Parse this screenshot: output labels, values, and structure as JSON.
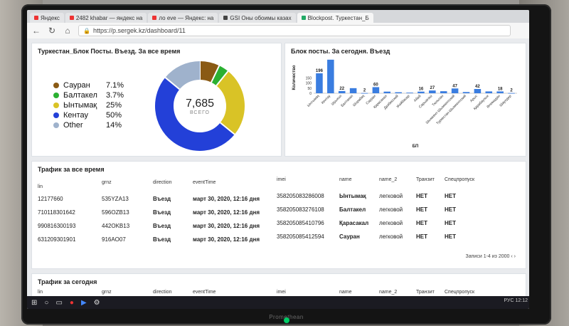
{
  "browser": {
    "tabs": [
      {
        "label": "Яндекс"
      },
      {
        "label": "2482 khabar — яндекс на"
      },
      {
        "label": "ло eve — Яндекс: на"
      },
      {
        "label": "GSI Оны обоимы казах"
      },
      {
        "label": "Blockpost. Туркестан_Б"
      }
    ],
    "url": "https://p.sergek.kz/dashboard/11"
  },
  "donut_panel": {
    "title": "Туркестан_Блок Посты. Въезд. За все время",
    "total": "7,685",
    "total_label": "ВСЕГО",
    "legend": [
      {
        "name": "Сауран",
        "pct": "7.1%",
        "color": "#8a5a14",
        "value": 7.1
      },
      {
        "name": "Балтакел",
        "pct": "3.7%",
        "color": "#2bb031",
        "value": 3.7
      },
      {
        "name": "Ынтымақ",
        "pct": "25%",
        "color": "#d9c326",
        "value": 25
      },
      {
        "name": "Кентау",
        "pct": "50%",
        "color": "#2340d8",
        "value": 50
      },
      {
        "name": "Other",
        "pct": "14%",
        "color": "#9fb2cc",
        "value": 14
      }
    ]
  },
  "chart_data": {
    "type": "bar",
    "title": "Блок посты. За сегодня. Въезд",
    "ylabel": "Количество",
    "xlabel": "БП",
    "categories": [
      "Ынтымақ",
      "Кентау",
      "Шуыкол",
      "Балтакел",
      "Шорабақ",
      "Сауран",
      "Қарасакал",
      "Дазбекский",
      "Жөйбасар",
      "Абай",
      "Сарыағаш",
      "Тюльпан",
      "Шымкент-Шымкентский",
      "Туркестан-Шымкентский",
      "Арыс",
      "Қарабаулык",
      "Әлемадан",
      "Шаулдер"
    ],
    "values": [
      196,
      330,
      22,
      50,
      2,
      60,
      16,
      10,
      6,
      16,
      27,
      20,
      47,
      12,
      42,
      18,
      18,
      2
    ],
    "labels": [
      "196",
      "",
      "22",
      "",
      "2",
      "60",
      "",
      "",
      "",
      "16",
      "27",
      "",
      "47",
      "",
      "42",
      "",
      "18",
      "2"
    ],
    "color": "#3a7de0"
  },
  "table_all": {
    "title": "Трафик за все время",
    "headers": [
      "lin",
      "grnz",
      "direction",
      "eventTime",
      "imei",
      "name",
      "name_2",
      "Транзит",
      "Спецпропуск"
    ],
    "rows": [
      [
        "12177660",
        "535YZA13",
        "Въезд",
        "март 30, 2020, 12:16 дня",
        "358205083286008",
        "Ынтымақ",
        "легковой",
        "НЕТ",
        "НЕТ"
      ],
      [
        "710118301642",
        "596OZB13",
        "Въезд",
        "март 30, 2020, 12:16 дня",
        "358205083276108",
        "Балтакел",
        "легковой",
        "НЕТ",
        "НЕТ"
      ],
      [
        "990816300193",
        "442OKB13",
        "Въезд",
        "март 30, 2020, 12:16 дня",
        "358205085410796",
        "Қарасакал",
        "легковой",
        "НЕТ",
        "НЕТ"
      ],
      [
        "631209301901",
        "916AO07",
        "Въезд",
        "март 30, 2020, 12:16 дня",
        "358205085412594",
        "Сауран",
        "легковой",
        "НЕТ",
        "НЕТ"
      ]
    ],
    "pager": "Записи 1-4 из 2000"
  },
  "table_today": {
    "title": "Трафик за сегодня",
    "headers": [
      "lin",
      "grnz",
      "direction",
      "eventTime",
      "imei",
      "name",
      "name_2",
      "Транзит",
      "Спецпропуск"
    ]
  },
  "taskbar": {
    "lang": "РУС",
    "time": "12:12"
  },
  "monitor": {
    "brand": "Promethean"
  }
}
